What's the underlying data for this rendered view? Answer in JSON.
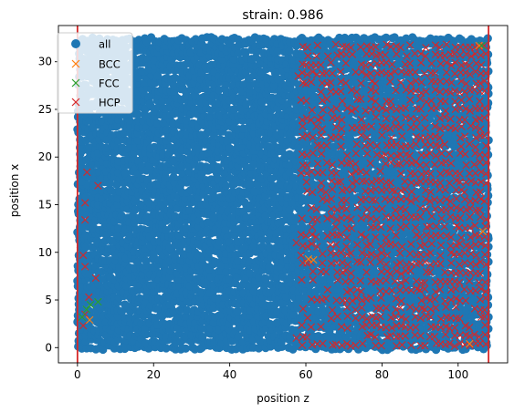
{
  "chart_data": {
    "type": "scatter",
    "title": "strain: 0.986",
    "xlabel": "position z",
    "ylabel": "position x",
    "xlim": [
      -5,
      113
    ],
    "ylim": [
      -1.6,
      33.8
    ],
    "xticks": [
      0,
      20,
      40,
      60,
      80,
      100
    ],
    "yticks": [
      0,
      5,
      10,
      15,
      20,
      25,
      30
    ],
    "grid": false,
    "legend_position": "top-left",
    "vlines": [
      {
        "x": 0,
        "color": "#d62728"
      },
      {
        "x": 108,
        "color": "#d62728"
      }
    ],
    "series": [
      {
        "name": "all",
        "marker": "circle",
        "color": "#1f77b4",
        "region": {
          "x": [
            0.5,
            108
          ],
          "y": [
            0,
            32.5
          ]
        },
        "points": [
          [
            0,
            22.9
          ],
          [
            0,
            12.1
          ],
          [
            0,
            7
          ],
          [
            0,
            2.7
          ],
          [
            1,
            29.5
          ],
          [
            1,
            26.2
          ],
          [
            1,
            17.4
          ],
          [
            1,
            12.6
          ]
        ]
      },
      {
        "name": "BCC",
        "marker": "x",
        "color": "#ff7f0e",
        "points": [
          [
            60.7,
            9.3
          ],
          [
            62,
            9.2
          ],
          [
            103,
            0.4
          ],
          [
            105.5,
            31.7
          ],
          [
            106.5,
            12.2
          ],
          [
            3.2,
            2.9
          ]
        ]
      },
      {
        "name": "FCC",
        "marker": "x",
        "color": "#2ca02c",
        "points": [
          [
            2.4,
            4
          ],
          [
            3.4,
            4.5
          ],
          [
            5.4,
            4.8
          ],
          [
            1.2,
            3.2
          ],
          [
            106.2,
            31.7
          ]
        ]
      },
      {
        "name": "HCP",
        "marker": "x",
        "color": "#d62728",
        "dense_region": {
          "x": [
            59,
            108
          ],
          "y": [
            0,
            32
          ]
        },
        "points": [
          [
            2.5,
            18.4
          ],
          [
            2,
            15.2
          ],
          [
            2,
            13.4
          ],
          [
            1.5,
            9.7
          ],
          [
            2,
            8.5
          ],
          [
            4.8,
            7.3
          ],
          [
            5.4,
            17
          ],
          [
            3,
            5.3
          ],
          [
            2,
            3.5
          ],
          [
            1.5,
            2.3
          ],
          [
            58,
            28.5
          ],
          [
            57.5,
            11
          ],
          [
            57.5,
            1
          ]
        ]
      }
    ]
  }
}
